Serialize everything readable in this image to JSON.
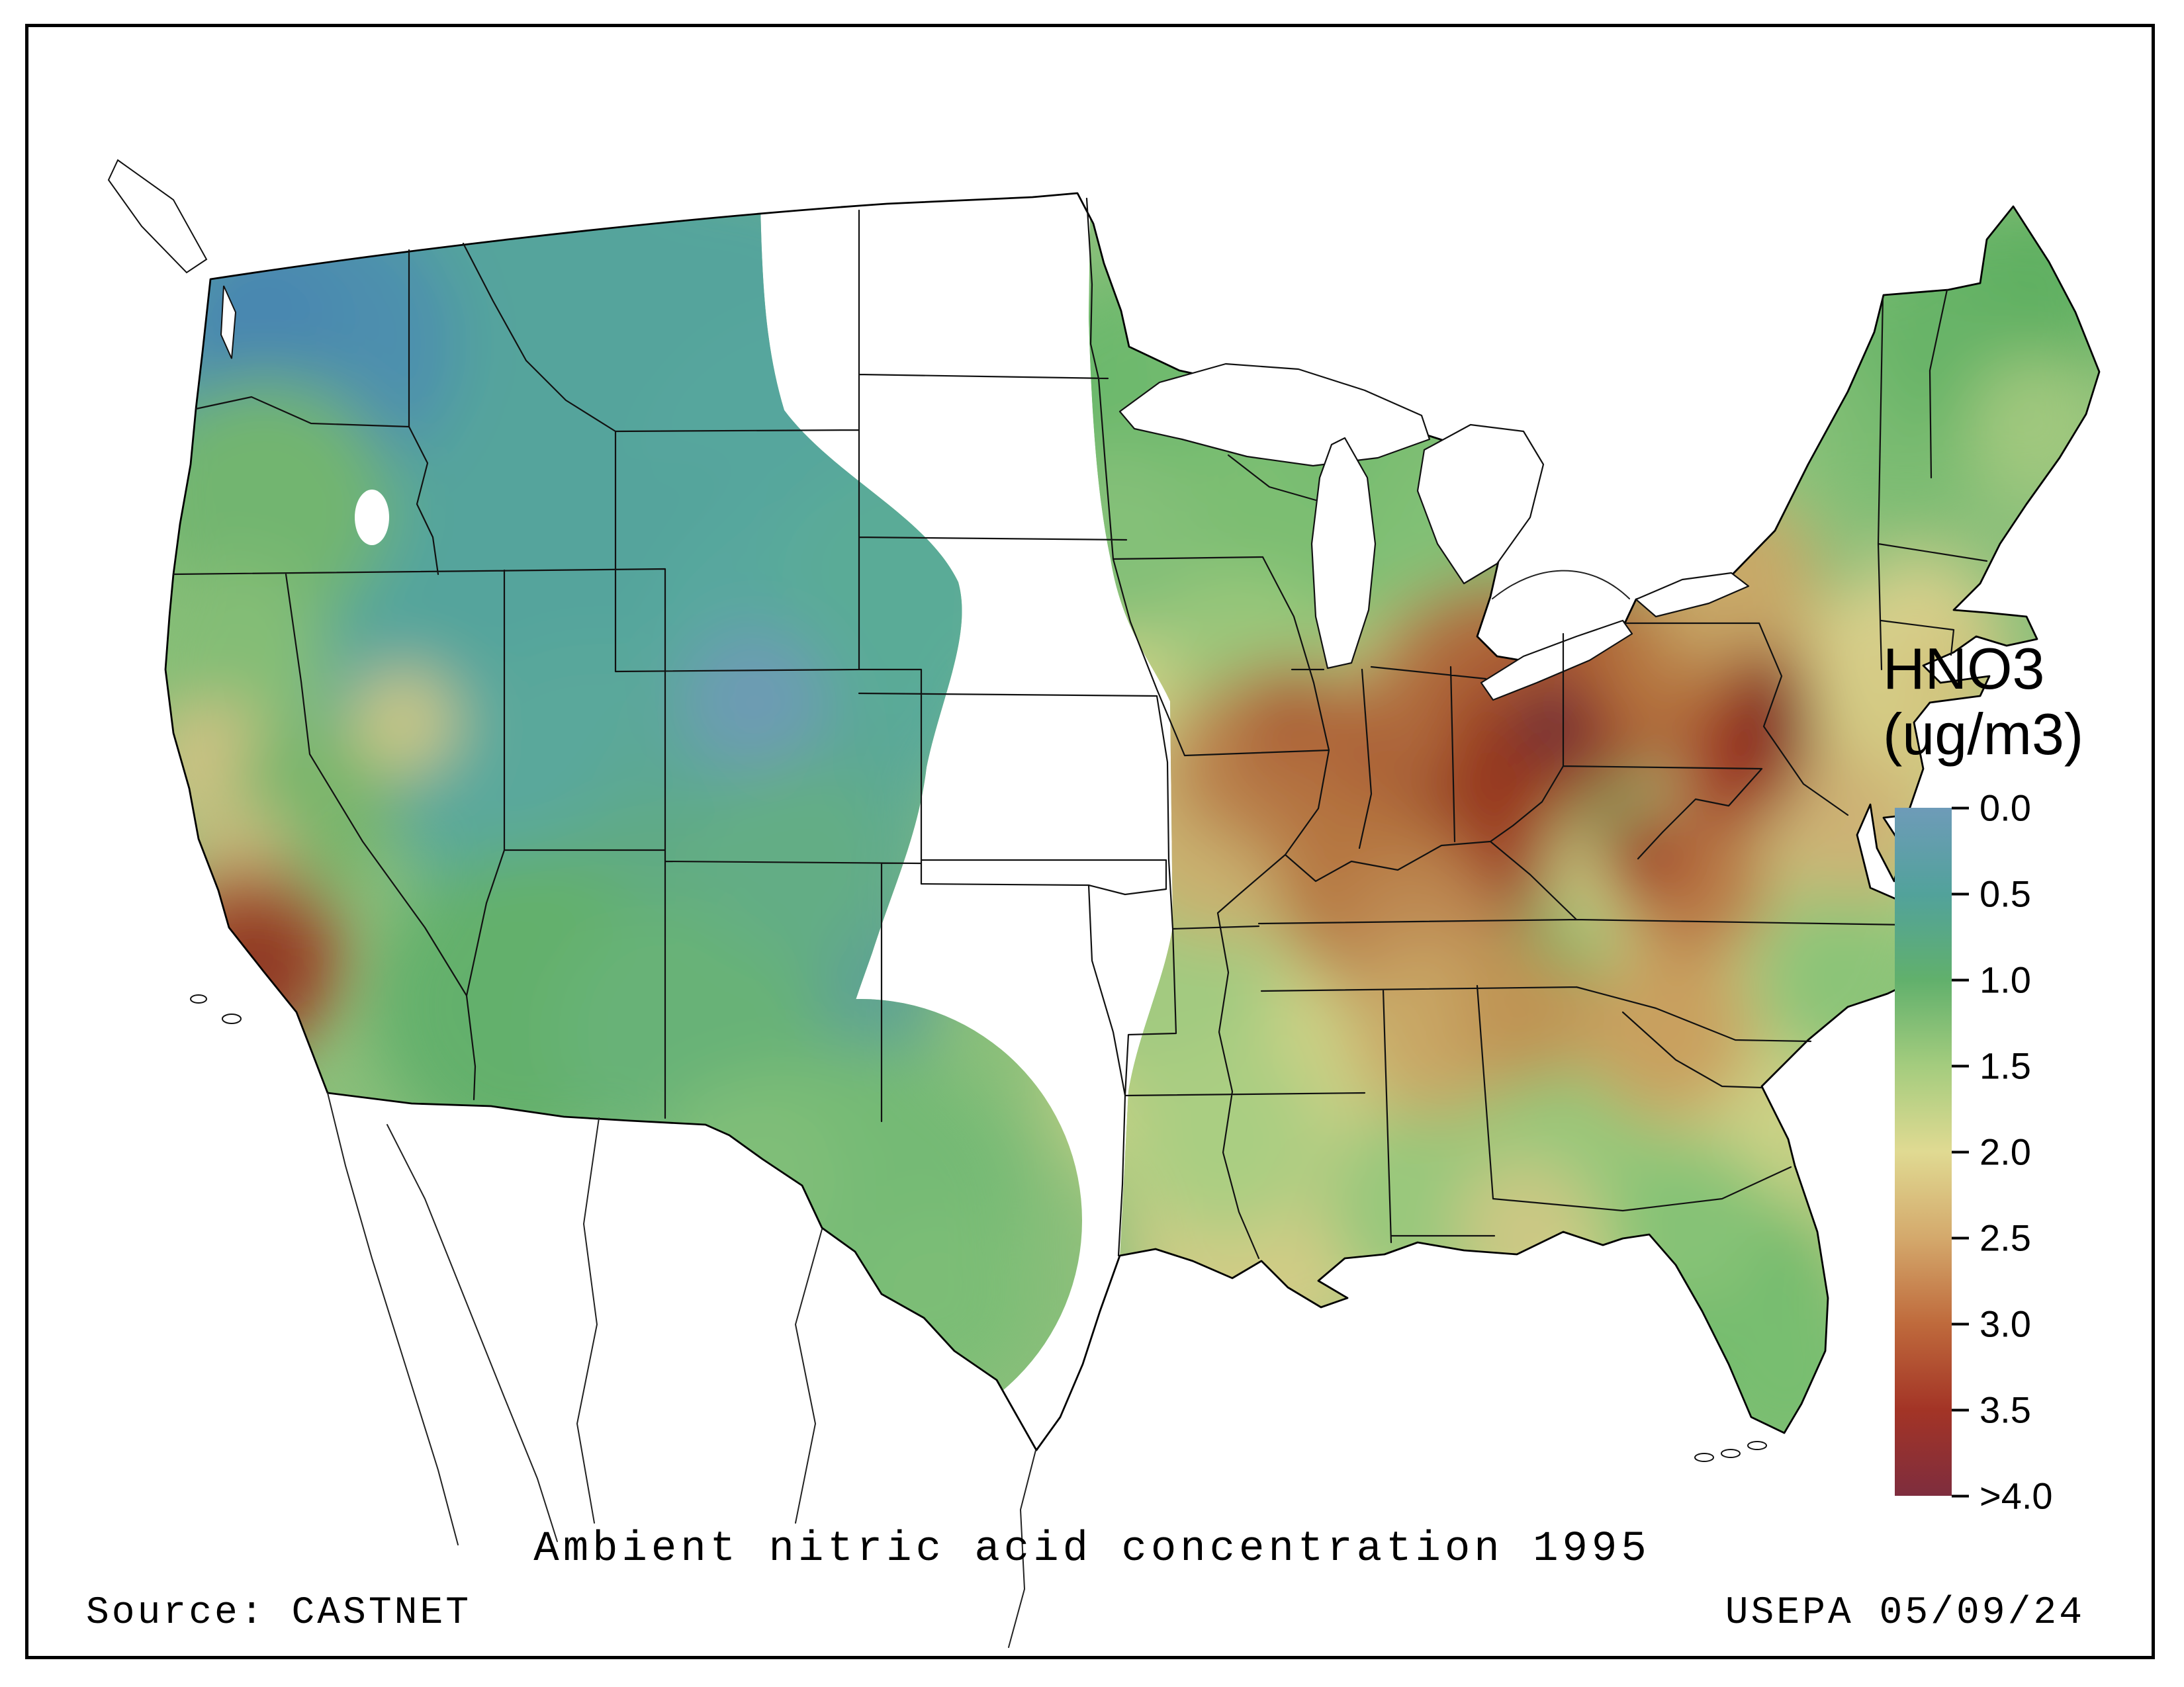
{
  "map": {
    "title": "Ambient nitric acid concentration 1995",
    "source": "Source: CASTNET",
    "credit": "USEPA 05/09/24"
  },
  "legend": {
    "title_line1": "HNO3",
    "title_line2": "(ug/m3)",
    "ticks": [
      "0.0",
      "0.5",
      "1.0",
      "1.5",
      "2.0",
      "2.5",
      "3.0",
      "3.5",
      ">4.0"
    ],
    "colors": [
      "#6e9bb8",
      "#52a29b",
      "#61b06c",
      "#a4cc7e",
      "#e0da92",
      "#d4a96c",
      "#bf6a3c",
      "#a33426",
      "#7e2d3e"
    ]
  }
}
